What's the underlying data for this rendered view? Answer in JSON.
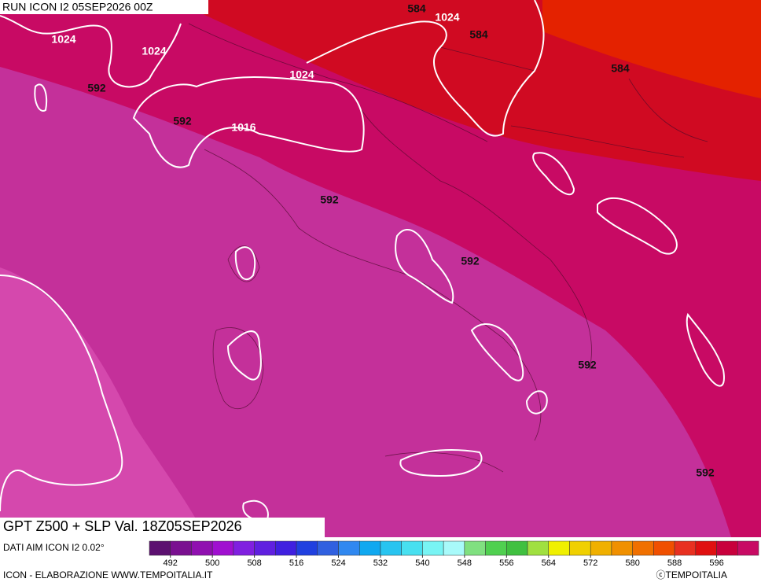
{
  "header": {
    "run": "RUN ICON I2 05SEP2026 00Z"
  },
  "title": "GPT Z500 + SLP Val. 18Z05SEP2026",
  "contour_labels": [
    {
      "text": "584",
      "color": "dark"
    },
    {
      "text": "1024",
      "color": "light"
    },
    {
      "text": "584",
      "color": "dark"
    },
    {
      "text": "1024",
      "color": "light"
    },
    {
      "text": "1024",
      "color": "light"
    },
    {
      "text": "592",
      "color": "dark"
    },
    {
      "text": "1024",
      "color": "light"
    },
    {
      "text": "584",
      "color": "dark"
    },
    {
      "text": "592",
      "color": "dark"
    },
    {
      "text": "1016",
      "color": "light"
    },
    {
      "text": "592",
      "color": "dark"
    },
    {
      "text": "592",
      "color": "dark"
    },
    {
      "text": "592",
      "color": "dark"
    },
    {
      "text": "592",
      "color": "dark"
    }
  ],
  "legend": {
    "source": "DATI AIM ICON I2 0.02°",
    "colors": [
      "#5c1070",
      "#7a1090",
      "#9010b0",
      "#a010d0",
      "#8020e0",
      "#6020e0",
      "#4020e0",
      "#2040e0",
      "#3060e0",
      "#3088f0",
      "#10a8f0",
      "#28c4f0",
      "#48e0f0",
      "#78f4f4",
      "#a8fafa",
      "#80e080",
      "#50d050",
      "#40c040",
      "#a0e040",
      "#f0f000",
      "#f0d000",
      "#f0b000",
      "#f09000",
      "#f07000",
      "#f05000",
      "#e83020",
      "#e01010",
      "#c8003c",
      "#c80a64",
      "#c4309a",
      "#d548ad",
      "#f080e0"
    ],
    "ticks": [
      492,
      500,
      508,
      516,
      524,
      532,
      540,
      548,
      556,
      564,
      572,
      580,
      588,
      596
    ]
  },
  "footer": {
    "left": "ICON - ELABORAZIONE WWW.TEMPOITALIA.IT",
    "right": "ⓒTEMPOITALIA"
  }
}
